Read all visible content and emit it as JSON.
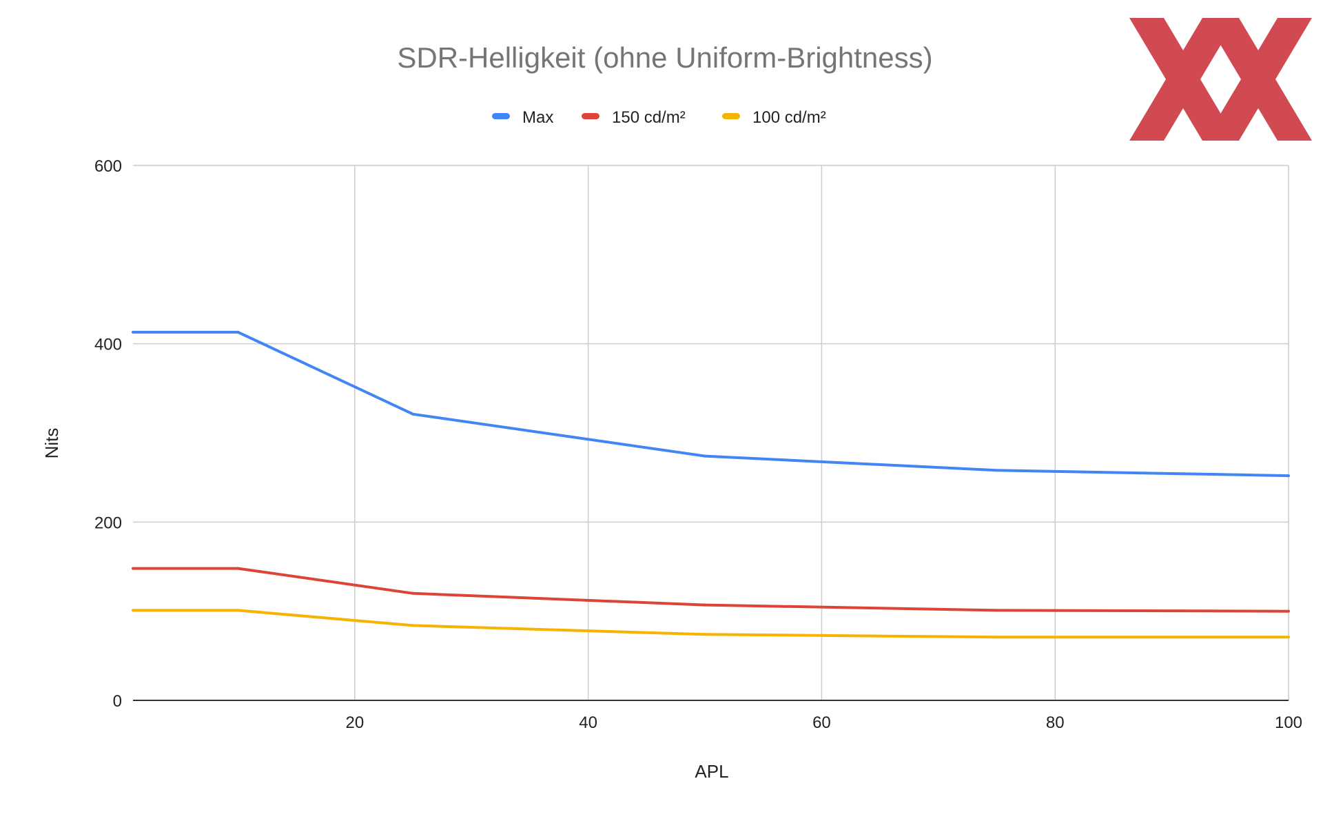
{
  "chart_data": {
    "type": "line",
    "title": "SDR-Helligkeit (ohne Uniform-Brightness)",
    "xlabel": "APL",
    "ylabel": "Nits",
    "xlim": [
      1,
      100
    ],
    "ylim": [
      0,
      600
    ],
    "x_ticks": [
      20,
      40,
      60,
      80,
      100
    ],
    "y_ticks": [
      0,
      200,
      400,
      600
    ],
    "grid": true,
    "legend_position": "top",
    "x": [
      1,
      10,
      25,
      50,
      75,
      100
    ],
    "series": [
      {
        "name": "Max",
        "color": "#4285f4",
        "values": [
          413,
          413,
          321,
          274,
          258,
          252
        ]
      },
      {
        "name": "150 cd/m²",
        "color": "#db4437",
        "values": [
          148,
          148,
          120,
          107,
          101,
          100
        ]
      },
      {
        "name": "100 cd/m²",
        "color": "#f4b400",
        "values": [
          101,
          101,
          84,
          74,
          71,
          71
        ]
      }
    ]
  },
  "logo": {
    "name": "XX",
    "color": "#c8232c"
  }
}
